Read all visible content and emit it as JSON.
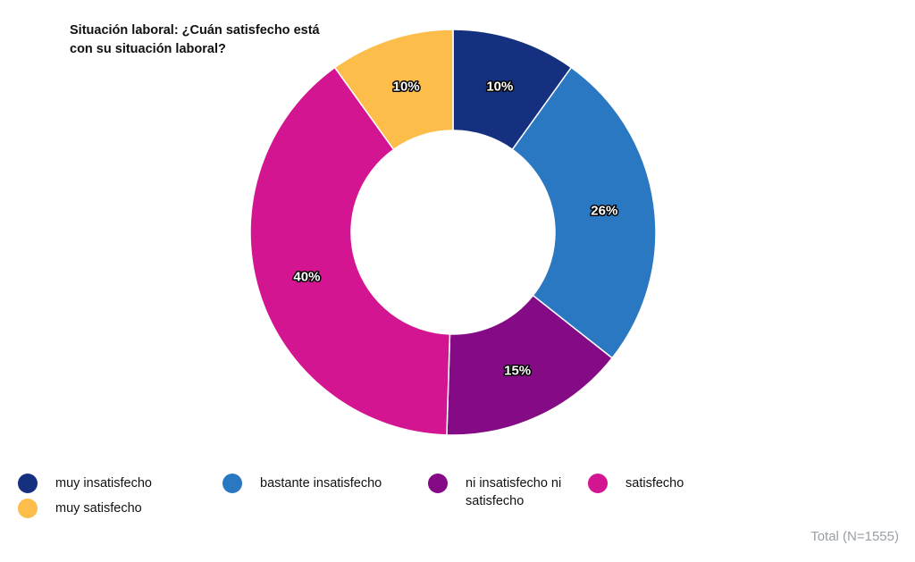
{
  "title": "Situación laboral: ¿Cuán satisfecho está con su situación laboral?",
  "footer": "Total (N=1555)",
  "chart_data": {
    "type": "pie",
    "donut": true,
    "categories": [
      "muy insatisfecho",
      "bastante insatisfecho",
      "ni insatisfecho ni satisfecho",
      "satisfecho",
      "muy satisfecho"
    ],
    "values": [
      10,
      26,
      15,
      40,
      10
    ],
    "labels": [
      "10%",
      "26%",
      "15%",
      "40%",
      "10%"
    ],
    "colors": [
      "#14307f",
      "#2a78c2",
      "#850a85",
      "#d41592",
      "#fcbd4a"
    ],
    "legend_position": "bottom"
  }
}
